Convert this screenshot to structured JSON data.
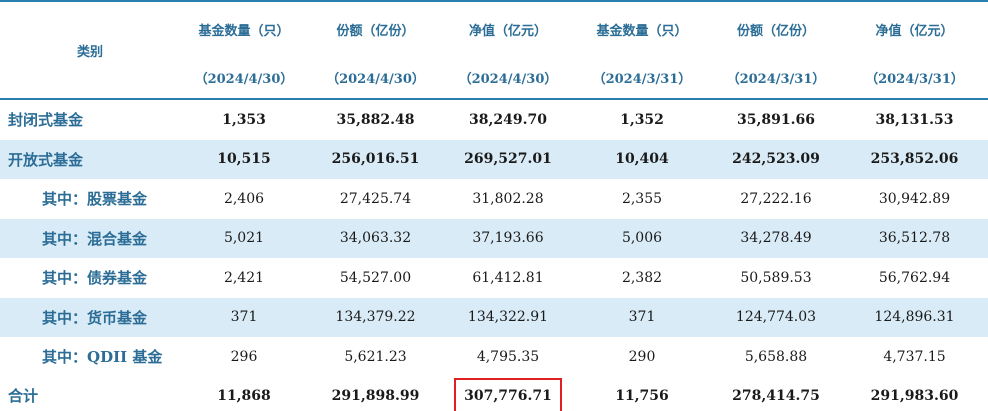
{
  "header": {
    "category": "类别",
    "columns": [
      {
        "title": "基金数量（只）",
        "date": "（2024/4/30）"
      },
      {
        "title": "份额（亿份）",
        "date": "（2024/4/30）"
      },
      {
        "title": "净值（亿元）",
        "date": "（2024/4/30）"
      },
      {
        "title": "基金数量（只）",
        "date": "（2024/3/31）"
      },
      {
        "title": "份额（亿份）",
        "date": "（2024/3/31）"
      },
      {
        "title": "净值（亿元）",
        "date": "（2024/3/31）"
      }
    ]
  },
  "rows": [
    {
      "label": "封闭式基金",
      "values": [
        "1,353",
        "35,882.48",
        "38,249.70",
        "1,352",
        "35,891.66",
        "38,131.53"
      ]
    },
    {
      "label": "开放式基金",
      "values": [
        "10,515",
        "256,016.51",
        "269,527.01",
        "10,404",
        "242,523.09",
        "253,852.06"
      ]
    },
    {
      "label": "其中：股票基金",
      "values": [
        "2,406",
        "27,425.74",
        "31,802.28",
        "2,355",
        "27,222.16",
        "30,942.89"
      ]
    },
    {
      "label": "其中：混合基金",
      "values": [
        "5,021",
        "34,063.32",
        "37,193.66",
        "5,006",
        "34,278.49",
        "36,512.78"
      ]
    },
    {
      "label": "其中：债券基金",
      "values": [
        "2,421",
        "54,527.00",
        "61,412.81",
        "2,382",
        "50,589.53",
        "56,762.94"
      ]
    },
    {
      "label": "其中：货币基金",
      "values": [
        "371",
        "134,379.22",
        "134,322.91",
        "371",
        "124,774.03",
        "124,896.31"
      ]
    },
    {
      "label": "其中：QDII 基金",
      "values": [
        "296",
        "5,621.23",
        "4,795.35",
        "290",
        "5,658.88",
        "4,737.15"
      ]
    },
    {
      "label": "合计",
      "values": [
        "11,868",
        "291,898.99",
        "307,776.71",
        "11,756",
        "278,414.75",
        "291,983.60"
      ]
    }
  ],
  "colors": {
    "header_text": "#2b6d96",
    "shade": "#d9ebf6",
    "rule": "#2a7faf",
    "highlight_box": "#e02020"
  }
}
